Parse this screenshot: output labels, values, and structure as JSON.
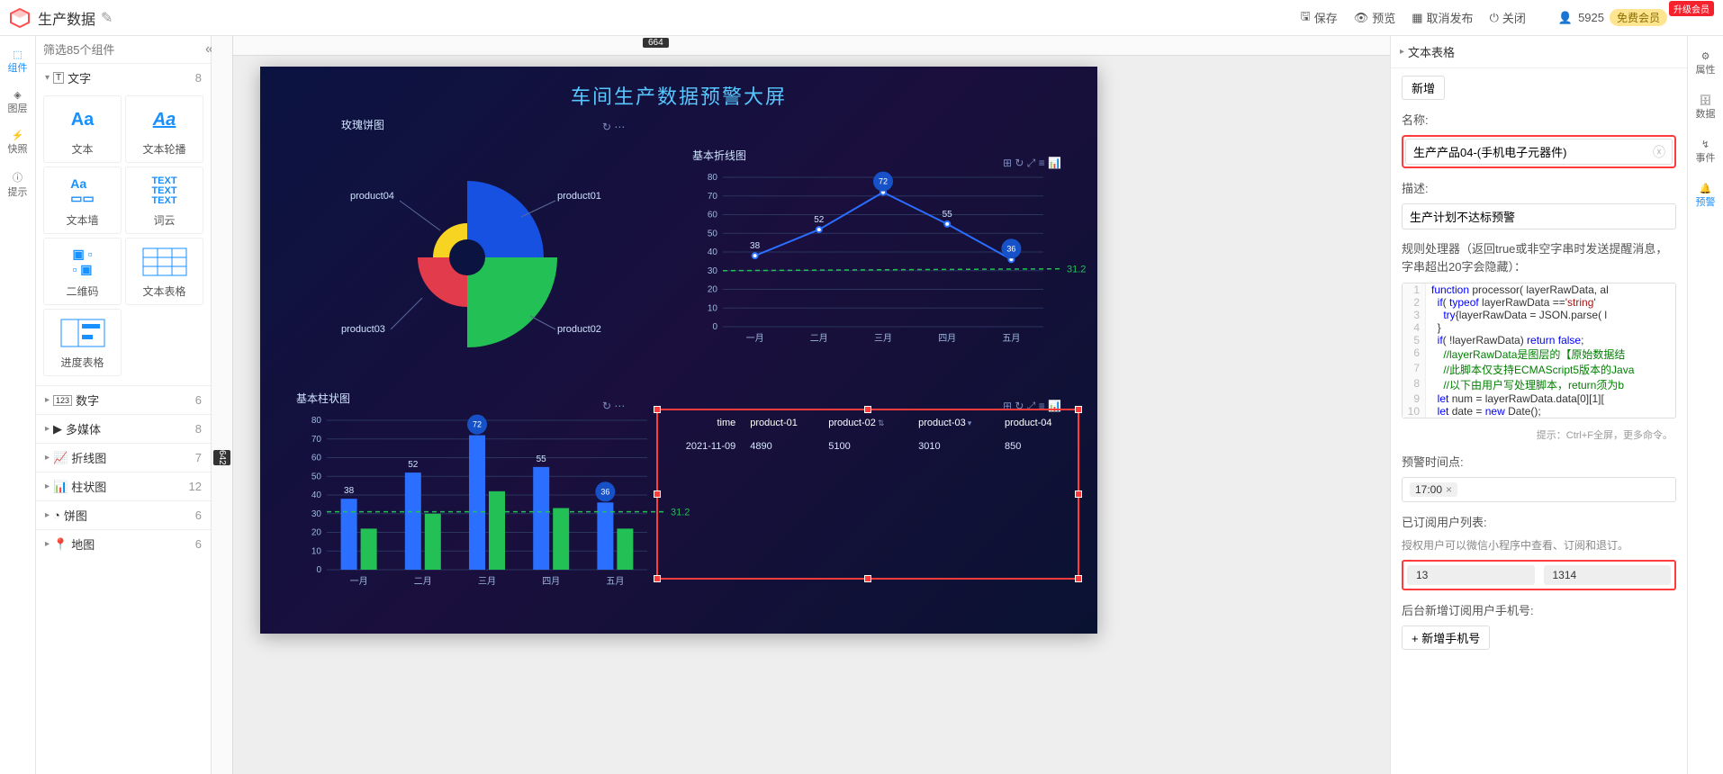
{
  "header": {
    "doc_title": "生产数据",
    "actions": {
      "save": "保存",
      "preview": "预览",
      "unpublish": "取消发布",
      "close": "关闭"
    },
    "user_id": "5925",
    "membership": "免费会员",
    "upgrade": "升级会员"
  },
  "left_rail": {
    "component": "组件",
    "layer": "图层",
    "snapshot": "快照",
    "hint": "提示"
  },
  "component_panel": {
    "filter_placeholder": "筛选85个组件",
    "text_group": {
      "label": "文字",
      "count": "8",
      "items": {
        "text": "文本",
        "text_carousel": "文本轮播",
        "text_wall": "文本墙",
        "word_cloud": "词云",
        "qrcode": "二维码",
        "text_table": "文本表格",
        "progress_table": "进度表格"
      }
    },
    "collapsed_groups": {
      "number": {
        "label": "数字",
        "count": "6"
      },
      "media": {
        "label": "多媒体",
        "count": "8"
      },
      "line": {
        "label": "折线图",
        "count": "7"
      },
      "bar": {
        "label": "柱状图",
        "count": "12"
      },
      "pie": {
        "label": "饼图",
        "count": "6"
      },
      "map": {
        "label": "地图",
        "count": "6"
      }
    }
  },
  "rulers": {
    "h_marker": "664",
    "v_marker": "642"
  },
  "dashboard": {
    "title": "车间生产数据预警大屏",
    "pie": {
      "title": "玫瑰饼图",
      "labels": {
        "p1": "product01",
        "p2": "product02",
        "p3": "product03",
        "p4": "product04"
      },
      "colors": {
        "p1": "#1651e2",
        "p2": "#22c055",
        "p3": "#e23b4b",
        "p4": "#f7d421"
      }
    },
    "line": {
      "type": "line",
      "title": "基本折线图",
      "categories": [
        "一月",
        "二月",
        "三月",
        "四月",
        "五月"
      ],
      "series": [
        {
          "values": [
            38,
            52,
            72,
            55,
            36
          ],
          "color": "#2a6fff",
          "style": "solid-dot"
        },
        {
          "values": [
            30,
            31,
            31,
            31,
            31
          ],
          "color": "#22c055",
          "style": "dash"
        }
      ],
      "ylim": [
        0,
        80
      ],
      "ytick_step": 10,
      "annotation_value": "31.2",
      "badge_points": [
        {
          "i": 2,
          "v": 72
        },
        {
          "i": 4,
          "v": 36
        }
      ],
      "value_labels": [
        {
          "i": 0,
          "v": 38
        },
        {
          "i": 1,
          "v": 52
        },
        {
          "i": 3,
          "v": 55
        }
      ],
      "grid_color": "#2a3560"
    },
    "bar": {
      "type": "bar",
      "title": "基本柱状图",
      "categories": [
        "一月",
        "二月",
        "三月",
        "四月",
        "五月"
      ],
      "series": [
        {
          "values": [
            38,
            52,
            72,
            55,
            36
          ],
          "color": "#2a6fff"
        },
        {
          "values": [
            22,
            30,
            42,
            33,
            22
          ],
          "color": "#22c055"
        }
      ],
      "ylim": [
        0,
        80
      ],
      "ytick_step": 10,
      "annotation_value": "31.2",
      "baseline": 31,
      "baseline_color": "#22c055",
      "badge_points": [
        {
          "i": 2,
          "v": 72
        },
        {
          "i": 4,
          "v": 36
        }
      ],
      "value_labels": [
        {
          "i": 0,
          "v": 38
        },
        {
          "i": 1,
          "v": 52
        },
        {
          "i": 3,
          "v": 55
        }
      ],
      "grid_color": "#2a3560"
    },
    "table": {
      "columns": {
        "time": "time",
        "p1": "product-01",
        "p2": "product-02",
        "p3": "product-03",
        "p4": "product-04"
      },
      "row": {
        "time": "2021-11-09",
        "p1": "4890",
        "p2": "5100",
        "p3": "3010",
        "p4": "850"
      }
    }
  },
  "props": {
    "panel_title": "文本表格",
    "add_btn": "新增",
    "name_label": "名称:",
    "name_value": "生产产品04-(手机电子元器件)",
    "desc_label": "描述:",
    "desc_value": "生产计划不达标预警",
    "rule_label": "规则处理器（返回true或非空字串时发送提醒消息，字串超出20字会隐藏）：",
    "code": {
      "l1": "function processor( layerRawData, al",
      "l2": "  if( typeof layerRawData =='string'",
      "l3": "    try{layerRawData = JSON.parse( l",
      "l4": "  }",
      "l5": "  if( !layerRawData) return false;",
      "l6": "  //layerRawData是图层的【原始数据结",
      "l7": "  //此脚本仅支持ECMAScript5版本的Java",
      "l8": "  //以下由用户写处理脚本，return须为b",
      "l9": "  let num = layerRawData.data[0][1][",
      "l10": " let date = new Date();"
    },
    "code_hint": "提示：Ctrl+F全屏，更多命令。",
    "alarm_time_label": "预警时间点:",
    "alarm_time_value": "17:00",
    "subscribers_label": "已订阅用户列表:",
    "subscribers_hint": "授权用户可以微信小程序中查看、订阅和退订。",
    "phones": {
      "a": "13",
      "b": "1314"
    },
    "new_phone_label": "后台新增订阅用户手机号:",
    "add_phone_btn": "+ 新增手机号"
  },
  "right_rail": {
    "attr": "属性",
    "data": "数据",
    "event": "事件",
    "alarm": "预警"
  }
}
